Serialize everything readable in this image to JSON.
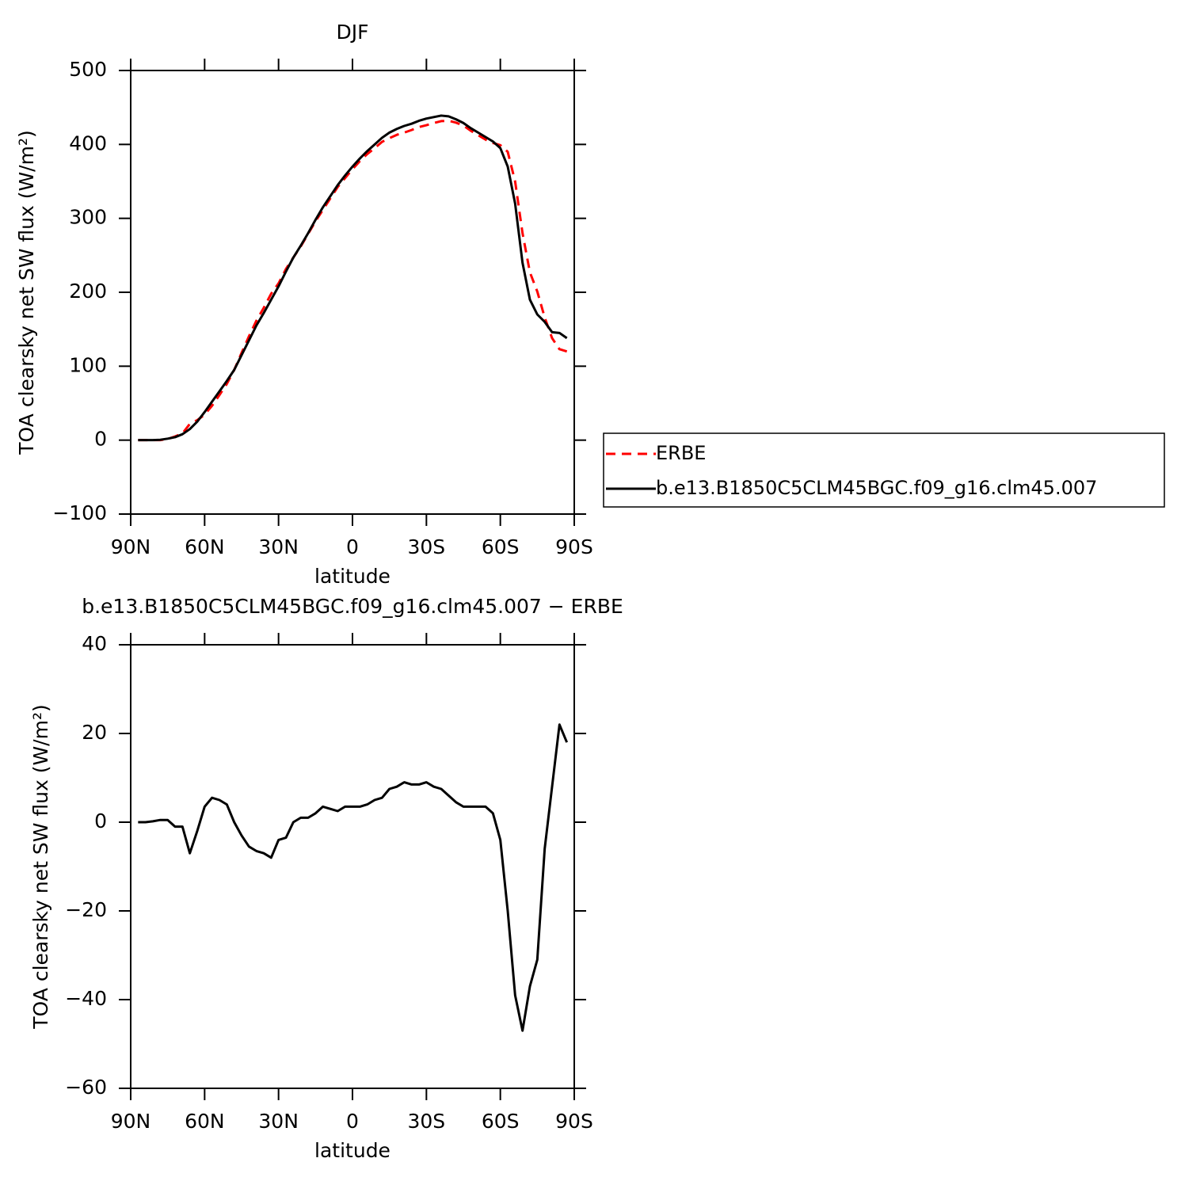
{
  "chart_data": [
    {
      "type": "line",
      "title": "DJF",
      "xlabel": "latitude",
      "ylabel": "TOA clearsky net SW flux (W/m²)",
      "x": [
        87,
        84,
        81,
        78,
        75,
        72,
        69,
        66,
        63,
        60,
        57,
        54,
        51,
        48,
        45,
        42,
        39,
        36,
        33,
        30,
        27,
        24,
        21,
        18,
        15,
        12,
        9,
        6,
        3,
        0,
        -3,
        -6,
        -9,
        -12,
        -15,
        -18,
        -21,
        -24,
        -27,
        -30,
        -33,
        -36,
        -39,
        -42,
        -45,
        -48,
        -51,
        -54,
        -57,
        -60,
        -63,
        -66,
        -69,
        -72,
        -75,
        -78,
        -81,
        -84,
        -87
      ],
      "series": [
        {
          "name": "ERBE",
          "color": "#ff0000",
          "dash": true,
          "values": [
            0,
            0,
            0,
            0,
            1.5,
            5,
            9,
            22,
            27,
            34.5,
            46.5,
            61,
            76,
            95,
            118,
            140.5,
            161.5,
            179,
            198,
            212,
            231.5,
            247,
            262,
            279,
            296,
            311.5,
            327,
            342.5,
            354.5,
            366.5,
            377.5,
            387,
            395,
            403.5,
            408.5,
            413,
            416,
            419.5,
            423.5,
            426,
            429,
            431.5,
            432,
            429.5,
            425.5,
            418.5,
            412.5,
            406.5,
            402,
            399,
            390,
            350,
            280,
            227,
            201,
            166,
            138,
            123,
            120
          ]
        },
        {
          "name": "b.e13.B1850C5CLM45BGC.f09_g16.clm45.007",
          "color": "#000000",
          "dash": false,
          "values": [
            0,
            0,
            0,
            0.5,
            2,
            4,
            8,
            15,
            25,
            38,
            52,
            66,
            80,
            95,
            115,
            135,
            155,
            172,
            190,
            208,
            228,
            247,
            263,
            280,
            298,
            315,
            330,
            345,
            358,
            370,
            381,
            391,
            400,
            409,
            416,
            421,
            425,
            428,
            432,
            435,
            437,
            439,
            438,
            434,
            429,
            422,
            416,
            410,
            404,
            395,
            370,
            320,
            240,
            190,
            170,
            160,
            146,
            145,
            138
          ]
        }
      ],
      "xlim": [
        90,
        -90
      ],
      "xticks": [
        {
          "value": 90,
          "label": "90N"
        },
        {
          "value": 60,
          "label": "60N"
        },
        {
          "value": 30,
          "label": "30N"
        },
        0,
        {
          "value": -30,
          "label": "30S"
        },
        {
          "value": -60,
          "label": "60S"
        },
        {
          "value": -90,
          "label": "90S"
        }
      ],
      "ylim": [
        -100,
        500
      ],
      "yticks": [
        {
          "value": -100,
          "label": "−100"
        },
        0,
        100,
        200,
        300,
        400,
        500
      ],
      "legend": "right"
    },
    {
      "type": "line",
      "title": "b.e13.B1850C5CLM45BGC.f09_g16.clm45.007 − ERBE",
      "xlabel": "latitude",
      "ylabel": "TOA clearsky net SW flux (W/m²)",
      "x": [
        87,
        84,
        81,
        78,
        75,
        72,
        69,
        66,
        63,
        60,
        57,
        54,
        51,
        48,
        45,
        42,
        39,
        36,
        33,
        30,
        27,
        24,
        21,
        18,
        15,
        12,
        9,
        6,
        3,
        0,
        -3,
        -6,
        -9,
        -12,
        -15,
        -18,
        -21,
        -24,
        -27,
        -30,
        -33,
        -36,
        -39,
        -42,
        -45,
        -48,
        -51,
        -54,
        -57,
        -60,
        -63,
        -66,
        -69,
        -72,
        -75,
        -78,
        -81,
        -84,
        -87
      ],
      "series": [
        {
          "color": "#000000",
          "dash": false,
          "values": [
            0,
            0,
            0.2,
            0.5,
            0.5,
            -1,
            -1,
            -7,
            -2,
            3.5,
            5.5,
            5,
            4,
            0,
            -3,
            -5.5,
            -6.5,
            -7,
            -8,
            -4,
            -3.5,
            0,
            1,
            1,
            2,
            3.5,
            3,
            2.5,
            3.5,
            3.5,
            3.5,
            4,
            5,
            5.5,
            7.5,
            8,
            9,
            8.5,
            8.5,
            9,
            8,
            7.5,
            6,
            4.5,
            3.5,
            3.5,
            3.5,
            3.5,
            2,
            -4,
            -20,
            -39,
            -47,
            -37,
            -31,
            -6,
            8,
            22,
            18
          ]
        }
      ],
      "xlim": [
        90,
        -90
      ],
      "xticks": [
        {
          "value": 90,
          "label": "90N"
        },
        {
          "value": 60,
          "label": "60N"
        },
        {
          "value": 30,
          "label": "30N"
        },
        0,
        {
          "value": -30,
          "label": "30S"
        },
        {
          "value": -60,
          "label": "60S"
        },
        {
          "value": -90,
          "label": "90S"
        }
      ],
      "ylim": [
        -60,
        40
      ],
      "yticks": [
        {
          "value": -60,
          "label": "−60"
        },
        {
          "value": -40,
          "label": "−40"
        },
        {
          "value": -20,
          "label": "−20"
        },
        0,
        20,
        40
      ]
    }
  ]
}
